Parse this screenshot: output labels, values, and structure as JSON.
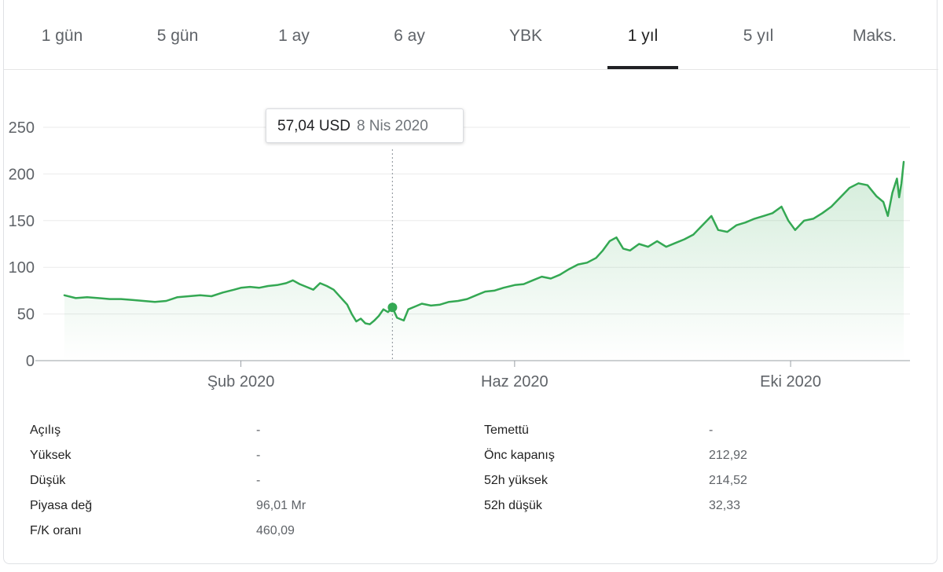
{
  "tabs": [
    {
      "label": "1 gün",
      "active": false
    },
    {
      "label": "5 gün",
      "active": false
    },
    {
      "label": "1 ay",
      "active": false
    },
    {
      "label": "6 ay",
      "active": false
    },
    {
      "label": "YBK",
      "active": false
    },
    {
      "label": "1 yıl",
      "active": true
    },
    {
      "label": "5 yıl",
      "active": false
    },
    {
      "label": "Maks.",
      "active": false
    }
  ],
  "tooltip": {
    "price": "57,04 USD",
    "date": "8 Nis 2020"
  },
  "stats_left": [
    {
      "label": "Açılış",
      "value": "-"
    },
    {
      "label": "Yüksek",
      "value": "-"
    },
    {
      "label": "Düşük",
      "value": "-"
    },
    {
      "label": "Piyasa değ",
      "value": "96,01 Mr"
    },
    {
      "label": "F/K oranı",
      "value": "460,09"
    }
  ],
  "stats_right": [
    {
      "label": "Temettü",
      "value": "-"
    },
    {
      "label": "Önc kapanış",
      "value": "212,92"
    },
    {
      "label": "52h yüksek",
      "value": "214,52"
    },
    {
      "label": "52h düşük",
      "value": "32,33"
    }
  ],
  "colors": {
    "line": "#34a853",
    "grid": "#ebebeb",
    "axis": "#5f6368"
  },
  "chart_data": {
    "type": "area",
    "title": "",
    "xlabel": "",
    "ylabel": "",
    "ylim": [
      0,
      250
    ],
    "yticks": [
      0,
      50,
      100,
      150,
      200,
      250
    ],
    "xticks": [
      {
        "label": "Şub 2020",
        "date": "2020-02-01"
      },
      {
        "label": "Haz 2020",
        "date": "2020-06-01"
      },
      {
        "label": "Eki 2020",
        "date": "2020-10-01"
      }
    ],
    "xrange": [
      "2019-11-15",
      "2020-11-20"
    ],
    "highlight": {
      "date": "2020-04-08",
      "value": 57.04
    },
    "series": [
      {
        "points": [
          [
            "2019-11-15",
            70
          ],
          [
            "2019-11-20",
            67
          ],
          [
            "2019-11-25",
            68
          ],
          [
            "2019-11-30",
            67
          ],
          [
            "2019-12-05",
            66
          ],
          [
            "2019-12-10",
            66
          ],
          [
            "2019-12-15",
            65
          ],
          [
            "2019-12-20",
            64
          ],
          [
            "2019-12-25",
            63
          ],
          [
            "2019-12-30",
            64
          ],
          [
            "2020-01-04",
            68
          ],
          [
            "2020-01-09",
            69
          ],
          [
            "2020-01-14",
            70
          ],
          [
            "2020-01-19",
            69
          ],
          [
            "2020-01-24",
            73
          ],
          [
            "2020-01-29",
            76
          ],
          [
            "2020-02-01",
            78
          ],
          [
            "2020-02-05",
            79
          ],
          [
            "2020-02-09",
            78
          ],
          [
            "2020-02-13",
            80
          ],
          [
            "2020-02-17",
            81
          ],
          [
            "2020-02-21",
            83
          ],
          [
            "2020-02-24",
            86
          ],
          [
            "2020-02-27",
            82
          ],
          [
            "2020-03-01",
            79
          ],
          [
            "2020-03-04",
            76
          ],
          [
            "2020-03-07",
            83
          ],
          [
            "2020-03-10",
            80
          ],
          [
            "2020-03-13",
            76
          ],
          [
            "2020-03-16",
            68
          ],
          [
            "2020-03-19",
            60
          ],
          [
            "2020-03-21",
            50
          ],
          [
            "2020-03-23",
            42
          ],
          [
            "2020-03-25",
            45
          ],
          [
            "2020-03-27",
            40
          ],
          [
            "2020-03-29",
            39
          ],
          [
            "2020-03-31",
            43
          ],
          [
            "2020-04-02",
            48
          ],
          [
            "2020-04-04",
            55
          ],
          [
            "2020-04-06",
            52
          ],
          [
            "2020-04-08",
            57
          ],
          [
            "2020-04-10",
            46
          ],
          [
            "2020-04-13",
            43
          ],
          [
            "2020-04-15",
            55
          ],
          [
            "2020-04-18",
            58
          ],
          [
            "2020-04-21",
            61
          ],
          [
            "2020-04-25",
            59
          ],
          [
            "2020-04-29",
            60
          ],
          [
            "2020-05-03",
            63
          ],
          [
            "2020-05-07",
            64
          ],
          [
            "2020-05-11",
            66
          ],
          [
            "2020-05-15",
            70
          ],
          [
            "2020-05-19",
            74
          ],
          [
            "2020-05-23",
            75
          ],
          [
            "2020-05-27",
            78
          ],
          [
            "2020-06-01",
            81
          ],
          [
            "2020-06-05",
            82
          ],
          [
            "2020-06-09",
            86
          ],
          [
            "2020-06-13",
            90
          ],
          [
            "2020-06-17",
            88
          ],
          [
            "2020-06-21",
            92
          ],
          [
            "2020-06-25",
            98
          ],
          [
            "2020-06-29",
            103
          ],
          [
            "2020-07-03",
            105
          ],
          [
            "2020-07-07",
            110
          ],
          [
            "2020-07-10",
            118
          ],
          [
            "2020-07-13",
            128
          ],
          [
            "2020-07-16",
            132
          ],
          [
            "2020-07-19",
            120
          ],
          [
            "2020-07-22",
            118
          ],
          [
            "2020-07-26",
            125
          ],
          [
            "2020-07-30",
            122
          ],
          [
            "2020-08-03",
            128
          ],
          [
            "2020-08-07",
            122
          ],
          [
            "2020-08-11",
            126
          ],
          [
            "2020-08-15",
            130
          ],
          [
            "2020-08-19",
            135
          ],
          [
            "2020-08-23",
            145
          ],
          [
            "2020-08-27",
            155
          ],
          [
            "2020-08-30",
            140
          ],
          [
            "2020-09-03",
            138
          ],
          [
            "2020-09-07",
            145
          ],
          [
            "2020-09-11",
            148
          ],
          [
            "2020-09-15",
            152
          ],
          [
            "2020-09-19",
            155
          ],
          [
            "2020-09-23",
            158
          ],
          [
            "2020-09-27",
            165
          ],
          [
            "2020-09-30",
            150
          ],
          [
            "2020-10-03",
            140
          ],
          [
            "2020-10-07",
            150
          ],
          [
            "2020-10-11",
            152
          ],
          [
            "2020-10-15",
            158
          ],
          [
            "2020-10-19",
            165
          ],
          [
            "2020-10-23",
            175
          ],
          [
            "2020-10-27",
            185
          ],
          [
            "2020-10-31",
            190
          ],
          [
            "2020-11-04",
            188
          ],
          [
            "2020-11-08",
            176
          ],
          [
            "2020-11-11",
            170
          ],
          [
            "2020-11-13",
            155
          ],
          [
            "2020-11-15",
            180
          ],
          [
            "2020-11-17",
            195
          ],
          [
            "2020-11-18",
            175
          ],
          [
            "2020-11-19",
            190
          ],
          [
            "2020-11-20",
            213
          ]
        ]
      }
    ]
  }
}
